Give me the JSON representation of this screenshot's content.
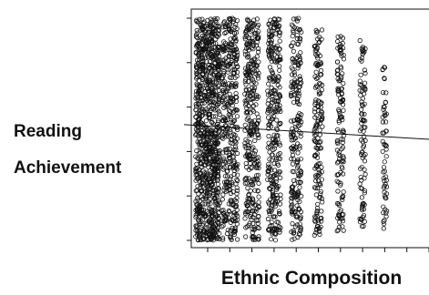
{
  "chart_data": {
    "type": "scatter",
    "title": "",
    "xlabel": "Ethnic Composition",
    "ylabel_lines": [
      "Reading",
      "Achievement"
    ],
    "xlim": [
      0,
      1
    ],
    "ylim": [
      0,
      1
    ],
    "xticks": [
      0,
      0.1,
      0.2,
      0.3,
      0.4,
      0.5,
      0.6,
      0.7,
      0.8,
      0.9,
      1.0
    ],
    "yticks": [
      0,
      0.2,
      0.4,
      0.6,
      0.8,
      1.0
    ],
    "tick_labels_shown": false,
    "grid": false,
    "x_columns": [
      0.0,
      0.1,
      0.2,
      0.3,
      0.4,
      0.5,
      0.6,
      0.7,
      0.8
    ],
    "column_weights": [
      1.0,
      0.88,
      0.78,
      0.7,
      0.52,
      0.38,
      0.3,
      0.22,
      0.14
    ],
    "column_ranges": [
      [
        0.0,
        1.0
      ],
      [
        0.0,
        1.0
      ],
      [
        0.0,
        1.0
      ],
      [
        0.0,
        1.0
      ],
      [
        0.0,
        1.0
      ],
      [
        0.02,
        0.96
      ],
      [
        0.04,
        0.92
      ],
      [
        0.06,
        0.9
      ],
      [
        0.05,
        0.78
      ]
    ],
    "series": [
      {
        "kind": "regression_line",
        "x": [
          0.0,
          1.0
        ],
        "y": [
          0.525,
          0.455
        ]
      }
    ],
    "marker": "open-circle",
    "color": "#111111"
  }
}
